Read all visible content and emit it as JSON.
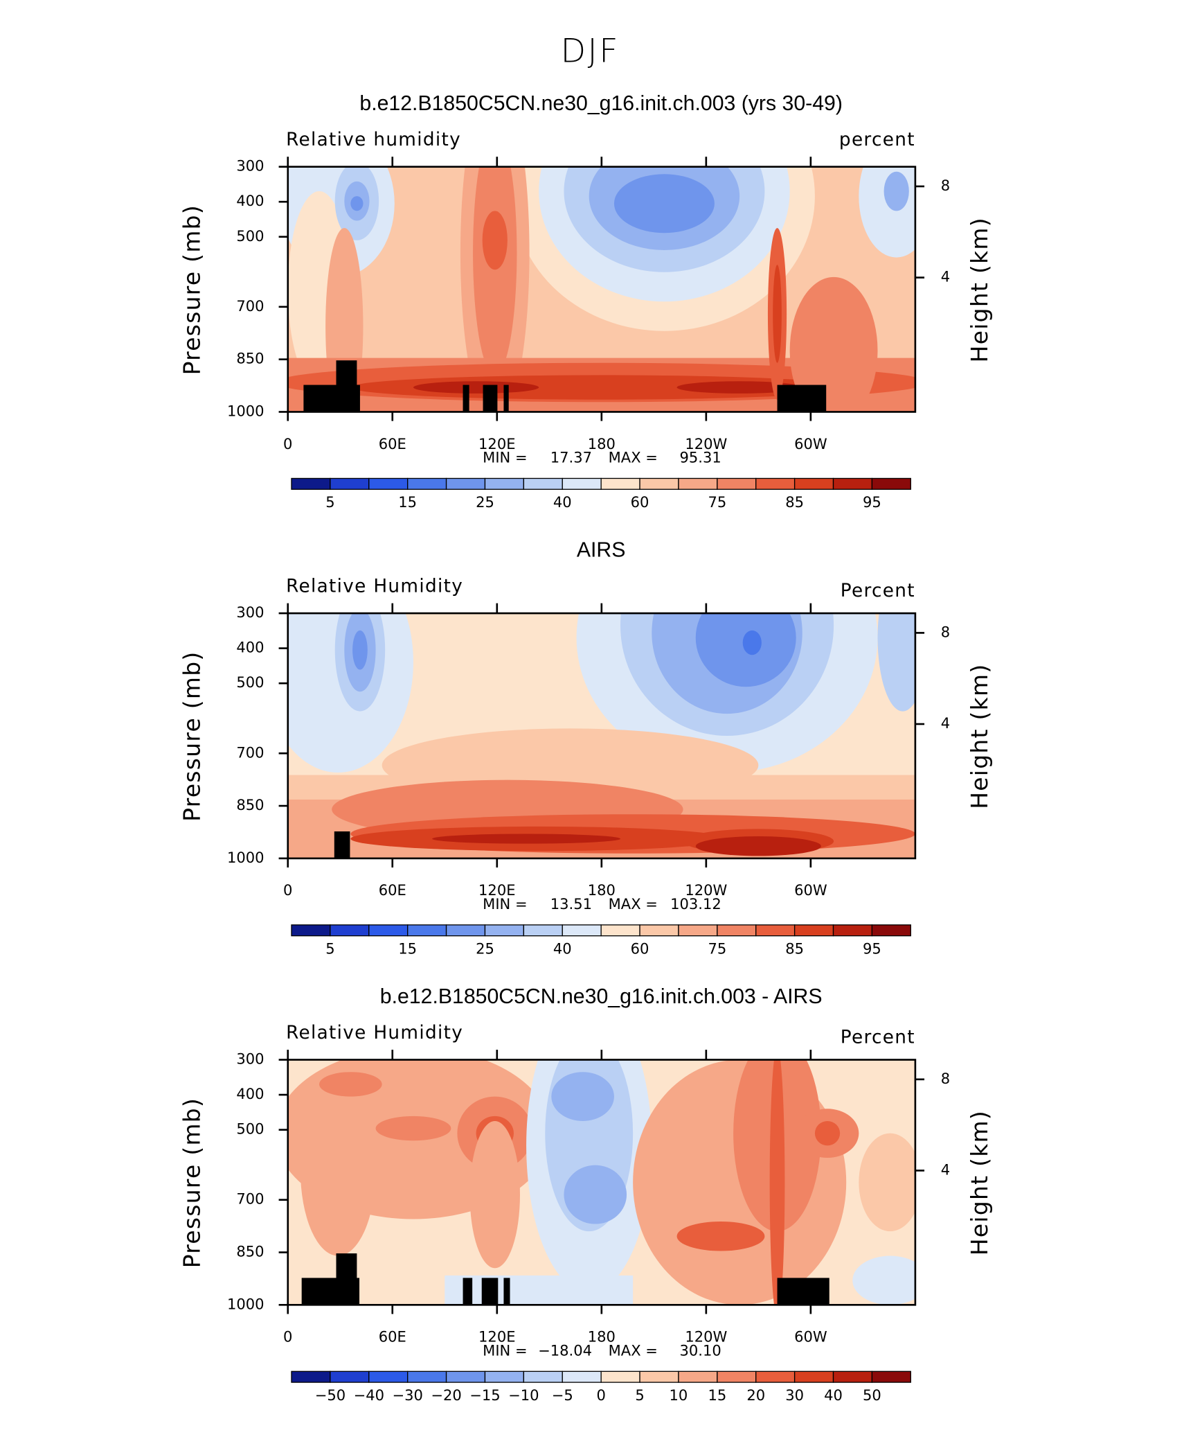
{
  "title": "DJF",
  "chart_data": [
    {
      "type": "contour",
      "title": "b.e12.B1850C5CN.ne30_g16.init.ch.003 (yrs 30-49)",
      "variable": "Relative humidity",
      "units": "percent",
      "ylabel": "Pressure (mb)",
      "y2label": "Height (km)",
      "xlim": [
        0,
        360
      ],
      "xticks": [
        0,
        {
          "value": 60,
          "label": "60E"
        },
        {
          "value": 120,
          "label": "120E"
        },
        180,
        {
          "value": 240,
          "label": "120W"
        },
        {
          "value": 300,
          "label": "60W"
        }
      ],
      "ylim": [
        1000,
        300
      ],
      "yticks": [
        300,
        400,
        500,
        700,
        850,
        1000
      ],
      "y2ticks": [
        4,
        8
      ],
      "min_text": "MIN =",
      "min": 17.37,
      "max_text": "MAX =",
      "max": 95.31,
      "colorbar": {
        "colors": [
          "#0d1a8a",
          "#1f3fd0",
          "#2c5ae8",
          "#4a78ea",
          "#6f95ec",
          "#94b2f0",
          "#bad0f4",
          "#dce8f8",
          "#fde4cc",
          "#fbc8a8",
          "#f6a888",
          "#f08464",
          "#e85e3c",
          "#d8401f",
          "#b8200f",
          "#8a0a0a"
        ],
        "ticks": [
          5,
          15,
          25,
          40,
          60,
          75,
          85,
          95
        ]
      }
    },
    {
      "type": "contour",
      "title": "AIRS",
      "variable": "Relative Humidity",
      "units": "Percent",
      "ylabel": "Pressure (mb)",
      "y2label": "Height (km)",
      "xlim": [
        0,
        360
      ],
      "xticks": [
        0,
        {
          "value": 60,
          "label": "60E"
        },
        {
          "value": 120,
          "label": "120E"
        },
        180,
        {
          "value": 240,
          "label": "120W"
        },
        {
          "value": 300,
          "label": "60W"
        }
      ],
      "ylim": [
        1000,
        300
      ],
      "yticks": [
        300,
        400,
        500,
        700,
        850,
        1000
      ],
      "y2ticks": [
        4,
        8
      ],
      "min_text": "MIN =",
      "min": 13.51,
      "max_text": "MAX =",
      "max": 103.12,
      "colorbar": {
        "colors": [
          "#0d1a8a",
          "#1f3fd0",
          "#2c5ae8",
          "#4a78ea",
          "#6f95ec",
          "#94b2f0",
          "#bad0f4",
          "#dce8f8",
          "#fde4cc",
          "#fbc8a8",
          "#f6a888",
          "#f08464",
          "#e85e3c",
          "#d8401f",
          "#b8200f",
          "#8a0a0a"
        ],
        "ticks": [
          5,
          15,
          25,
          40,
          60,
          75,
          85,
          95
        ]
      }
    },
    {
      "type": "contour",
      "title": "b.e12.B1850C5CN.ne30_g16.init.ch.003 - AIRS",
      "variable": "Relative Humidity",
      "units": "Percent",
      "ylabel": "Pressure (mb)",
      "y2label": "Height (km)",
      "xlim": [
        0,
        360
      ],
      "xticks": [
        0,
        {
          "value": 60,
          "label": "60E"
        },
        {
          "value": 120,
          "label": "120E"
        },
        180,
        {
          "value": 240,
          "label": "120W"
        },
        {
          "value": 300,
          "label": "60W"
        }
      ],
      "ylim": [
        1000,
        300
      ],
      "yticks": [
        300,
        400,
        500,
        700,
        850,
        1000
      ],
      "y2ticks": [
        4,
        8
      ],
      "min_text": "MIN =",
      "min": {
        "value": -18.04,
        "label": "−18.04"
      },
      "max_text": "MAX =",
      "max": {
        "value": 30.1,
        "label": "30.10"
      },
      "colorbar": {
        "colors": [
          "#0d1a8a",
          "#1f3fd0",
          "#2c5ae8",
          "#4a78ea",
          "#6f95ec",
          "#94b2f0",
          "#bad0f4",
          "#dce8f8",
          "#fde4cc",
          "#fbc8a8",
          "#f6a888",
          "#f08464",
          "#e85e3c",
          "#d8401f",
          "#b8200f",
          "#8a0a0a"
        ],
        "ticks": [
          {
            "value": -50,
            "label": "−50"
          },
          {
            "value": -40,
            "label": "−40"
          },
          {
            "value": -30,
            "label": "−30"
          },
          {
            "value": -20,
            "label": "−20"
          },
          {
            "value": -15,
            "label": "−15"
          },
          {
            "value": -10,
            "label": "−10"
          },
          {
            "value": -5,
            "label": "−5"
          },
          0,
          5,
          10,
          15,
          20,
          30,
          40,
          50
        ]
      }
    }
  ]
}
